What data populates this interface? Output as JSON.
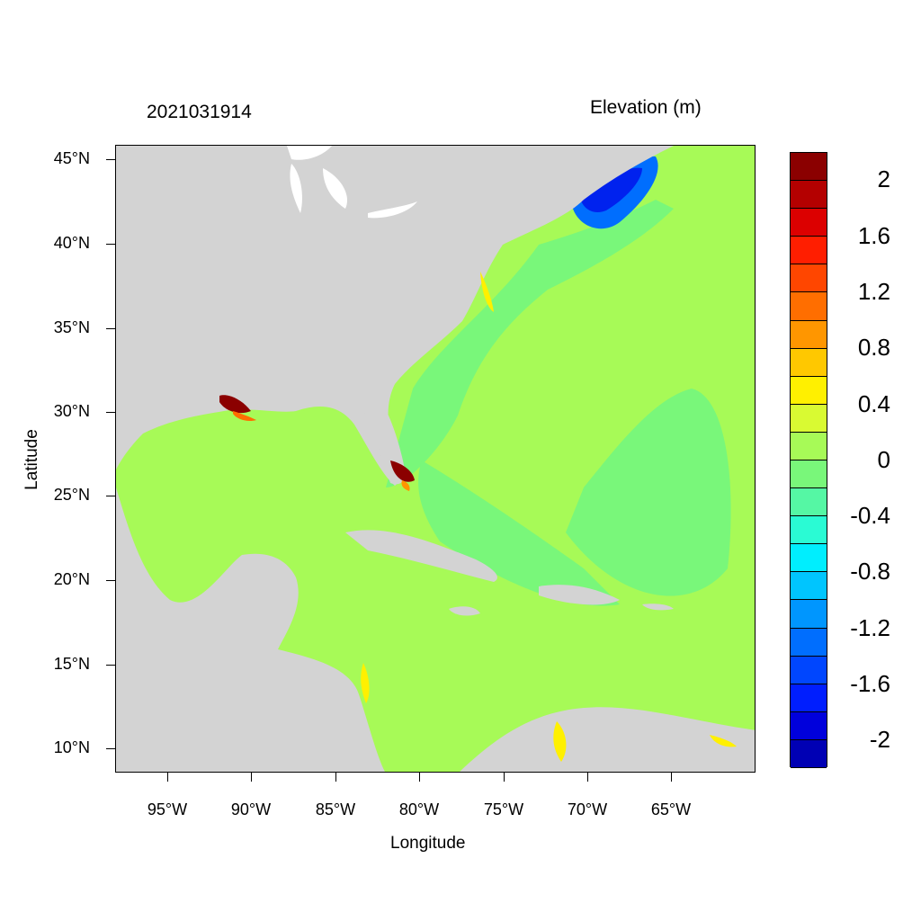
{
  "header": {
    "timestamp": "2021031914",
    "variable": "Elevation (m)"
  },
  "axes": {
    "xlabel": "Longitude",
    "ylabel": "Latitude",
    "lat_ticks": [
      "45°N",
      "40°N",
      "35°N",
      "30°N",
      "25°N",
      "20°N",
      "15°N",
      "10°N"
    ],
    "lon_ticks": [
      "95°W",
      "90°W",
      "85°W",
      "80°W",
      "75°W",
      "70°W",
      "65°W"
    ]
  },
  "legend": {
    "labels": [
      "2",
      "1.6",
      "1.2",
      "0.8",
      "0.4",
      "0",
      "-0.4",
      "-0.8",
      "-1.2",
      "-1.6",
      "-2"
    ],
    "colors": [
      "#8b0000",
      "#b40000",
      "#dc0000",
      "#ff1e00",
      "#ff4600",
      "#ff6e00",
      "#ff9600",
      "#ffc800",
      "#fff000",
      "#d9fa32",
      "#a7fa57",
      "#79f77a",
      "#55f7a4",
      "#2afbd4",
      "#00eefe",
      "#00c5fe",
      "#0096fe",
      "#006efe",
      "#0046fe",
      "#001efe",
      "#0000dc",
      "#0000b4"
    ]
  },
  "colors": {
    "land": "#d3d3d3",
    "ocean": "#a7fa57",
    "lakes": "#ffffff"
  }
}
